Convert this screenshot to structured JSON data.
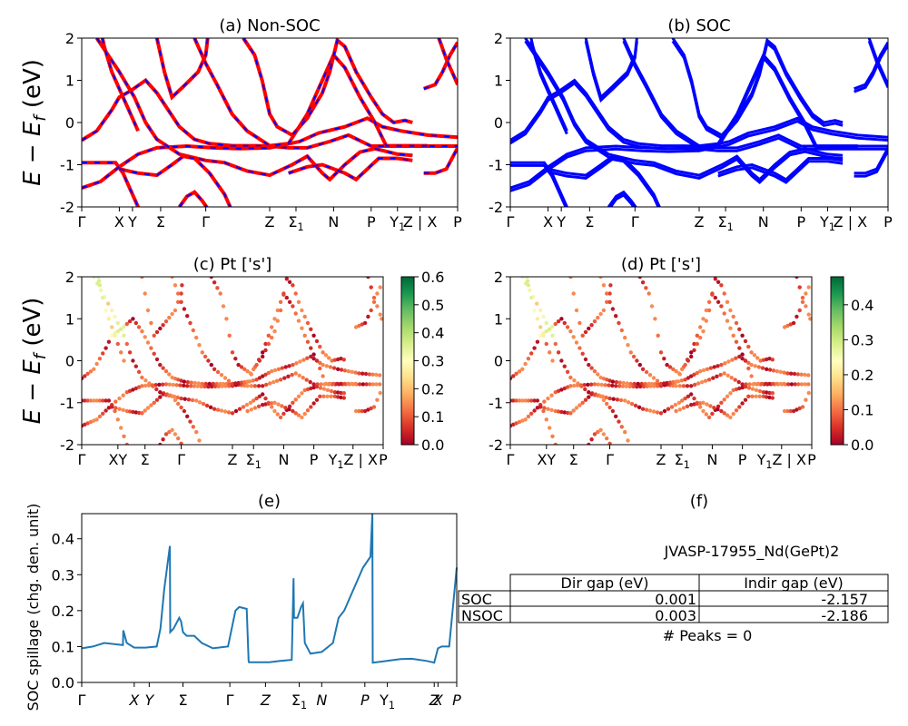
{
  "figure": {
    "ylabel_big": "E − E",
    "ylabel_big_sub": "f",
    "ylabel_big_unit": " (eV)"
  },
  "kpath_full": [
    "Γ",
    "X",
    "Y",
    "Σ",
    "Γ",
    "Z",
    "Σ1",
    "N",
    "P",
    "Y1",
    "Z | X",
    "P"
  ],
  "kpath_short": [
    "Γ",
    "XY",
    "Σ",
    "Γ",
    "Z",
    "Σ1",
    "N",
    "P",
    "Y1Z | X",
    "P"
  ],
  "kpath_spillage": [
    "Γ",
    "X",
    "Y",
    "Σ",
    "Γ",
    "Z",
    "Σ1",
    "N",
    "P",
    "Y1",
    "Z",
    "X",
    "P"
  ],
  "colors": {
    "red_band": "#ff0000",
    "blue_band": "#0000ff",
    "spillage_line": "#1f77b4"
  },
  "chart_data": [
    {
      "id": "a",
      "type": "line",
      "title": "(a) Non-SOC",
      "ylabel": "E − Ef (eV)",
      "ylim": [
        -2,
        2
      ],
      "yticks": [
        -2,
        -1,
        0,
        1,
        2
      ],
      "xticks": [
        "Γ",
        "X",
        "Y",
        "Σ",
        "Γ",
        "Z",
        "Σ1",
        "N",
        "P",
        "Y1",
        "Z | X",
        "P"
      ],
      "style": "red solid with blue dashed overlay",
      "series": [
        {
          "values": [
            [
              0,
              -0.4
            ],
            [
              0.1,
              -0.2
            ],
            [
              0.2,
              0.4
            ],
            [
              0.25,
              0.7
            ],
            [
              0.3,
              0.9
            ],
            [
              0.4,
              1.1
            ],
            [
              0.5,
              0.6
            ],
            [
              0.6,
              0.2
            ],
            [
              0.7,
              -0.1
            ],
            [
              0.8,
              -0.3
            ],
            [
              1.0,
              -0.5
            ]
          ]
        },
        {
          "values": [
            [
              0,
              -1.5
            ],
            [
              0.1,
              -1.4
            ],
            [
              0.3,
              -1.0
            ],
            [
              0.45,
              -0.7
            ],
            [
              0.55,
              -0.6
            ],
            [
              0.7,
              -0.5
            ],
            [
              1.0,
              -0.55
            ]
          ]
        }
      ]
    },
    {
      "id": "b",
      "type": "line",
      "title": "(b) SOC",
      "ylim": [
        -2,
        2
      ],
      "yticks": [
        -2,
        -1,
        0,
        1,
        2
      ],
      "xticks": [
        "Γ",
        "X",
        "Y",
        "Σ",
        "Γ",
        "Z",
        "Σ1",
        "N",
        "P",
        "Y1",
        "Z | X",
        "P"
      ],
      "style": "blue solid"
    },
    {
      "id": "c",
      "type": "scatter",
      "title": "(c)  Pt ['s']",
      "ylabel": "E − Ef (eV)",
      "ylim": [
        -2,
        2
      ],
      "yticks": [
        -2,
        -1,
        0,
        1,
        2
      ],
      "xticks": [
        "Γ",
        "XY",
        "Σ",
        "Γ",
        "Z",
        "Σ1",
        "N",
        "P",
        "Y1Z | X",
        "P"
      ],
      "colorbar": {
        "min": 0.0,
        "max": 0.6,
        "ticks": [
          0.0,
          0.1,
          0.2,
          0.3,
          0.4,
          0.5,
          0.6
        ],
        "colormap": "RdYlGn"
      }
    },
    {
      "id": "d",
      "type": "scatter",
      "title": "(d) Pt ['s']",
      "ylim": [
        -2,
        2
      ],
      "yticks": [
        -2,
        -1,
        0,
        1,
        2
      ],
      "xticks": [
        "Γ",
        "XY",
        "Σ",
        "Γ",
        "Z",
        "Σ1",
        "N",
        "P",
        "Y1Z | X",
        "P"
      ],
      "colorbar": {
        "min": 0.0,
        "max": 0.48,
        "ticks": [
          0.0,
          0.1,
          0.2,
          0.3,
          0.4
        ],
        "colormap": "RdYlGn"
      }
    },
    {
      "id": "e",
      "type": "line",
      "title": "(e)",
      "ylabel": "SOC spillage (chg. den. unit)",
      "ylim": [
        0.0,
        0.47
      ],
      "yticks": [
        0.0,
        0.1,
        0.2,
        0.3,
        0.4
      ],
      "xticks": [
        "Γ",
        "X",
        "Y",
        "Σ",
        "Γ",
        "Z",
        "Σ1",
        "N",
        "P",
        "Y1",
        "Z",
        "X",
        "P"
      ],
      "x": [
        0.0,
        0.03,
        0.06,
        0.1,
        0.11,
        0.111,
        0.12,
        0.14,
        0.17,
        0.2,
        0.21,
        0.22,
        0.235,
        0.236,
        0.245,
        0.26,
        0.265,
        0.27,
        0.28,
        0.3,
        0.32,
        0.35,
        0.39,
        0.41,
        0.42,
        0.44,
        0.445,
        0.446,
        0.47,
        0.5,
        0.53,
        0.56,
        0.565,
        0.566,
        0.575,
        0.585,
        0.59,
        0.595,
        0.61,
        0.64,
        0.67,
        0.685,
        0.7,
        0.75,
        0.77,
        0.775,
        0.776,
        0.8,
        0.85,
        0.88,
        0.92,
        0.94,
        0.95,
        0.96,
        0.98,
        1.0
      ],
      "y": [
        0.095,
        0.1,
        0.11,
        0.105,
        0.104,
        0.145,
        0.11,
        0.097,
        0.097,
        0.1,
        0.15,
        0.26,
        0.38,
        0.14,
        0.15,
        0.18,
        0.17,
        0.14,
        0.13,
        0.13,
        0.11,
        0.095,
        0.1,
        0.2,
        0.21,
        0.205,
        0.06,
        0.056,
        0.056,
        0.056,
        0.06,
        0.063,
        0.29,
        0.18,
        0.18,
        0.21,
        0.22,
        0.11,
        0.08,
        0.085,
        0.11,
        0.18,
        0.2,
        0.32,
        0.35,
        0.47,
        0.055,
        0.058,
        0.065,
        0.066,
        0.06,
        0.055,
        0.095,
        0.1,
        0.1,
        0.32
      ]
    }
  ],
  "table_panel": {
    "title": "(f)",
    "caption": "JVASP-17955_Nd(GePt)2",
    "headers": [
      "",
      "Dir gap (eV)",
      "Indir gap (eV)"
    ],
    "rows": [
      [
        "SOC",
        "0.001",
        "-2.157"
      ],
      [
        "NSOC",
        "0.003",
        "-2.186"
      ]
    ],
    "peaks": "# Peaks = 0"
  }
}
